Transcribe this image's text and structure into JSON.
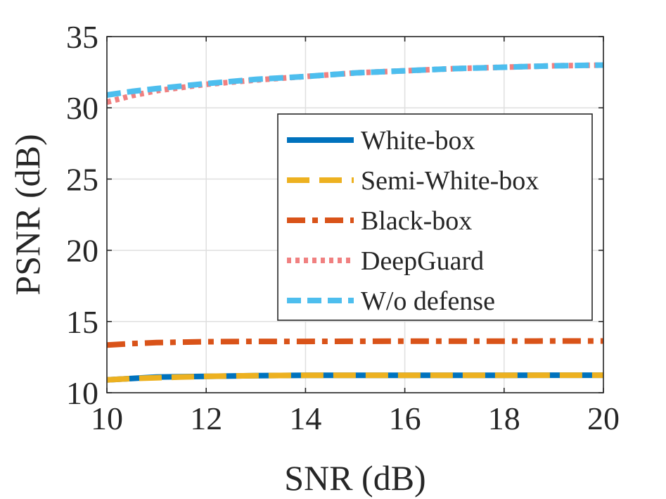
{
  "chart_data": {
    "type": "line",
    "title": "",
    "xlabel": "SNR (dB)",
    "ylabel": "PSNR (dB)",
    "xlim": [
      10,
      20
    ],
    "ylim": [
      10,
      35
    ],
    "xticks": [
      10,
      12,
      14,
      16,
      18,
      20
    ],
    "yticks": [
      10,
      15,
      20,
      25,
      30,
      35
    ],
    "xtick_labels": [
      "10",
      "12",
      "14",
      "16",
      "18",
      "20"
    ],
    "ytick_labels": [
      "10",
      "15",
      "20",
      "25",
      "30",
      "35"
    ],
    "grid": true,
    "legend_position": "center-right",
    "x": [
      10,
      10.5,
      11,
      12,
      13,
      14,
      15,
      16,
      17,
      18,
      19,
      20
    ],
    "series": [
      {
        "name": "White-box",
        "color": "#0072BD",
        "style": "solid",
        "values": [
          10.9,
          11.0,
          11.1,
          11.15,
          11.2,
          11.22,
          11.22,
          11.22,
          11.22,
          11.22,
          11.23,
          11.23
        ]
      },
      {
        "name": "Semi-White-box",
        "color": "#EDB120",
        "style": "long-dash",
        "values": [
          10.9,
          11.0,
          11.05,
          11.15,
          11.2,
          11.22,
          11.22,
          11.22,
          11.22,
          11.22,
          11.23,
          11.23
        ]
      },
      {
        "name": "Black-box",
        "color": "#D95319",
        "style": "dash-dot",
        "values": [
          13.35,
          13.45,
          13.52,
          13.58,
          13.6,
          13.6,
          13.61,
          13.62,
          13.62,
          13.62,
          13.63,
          13.63
        ]
      },
      {
        "name": "DeepGuard",
        "color": "#F08080",
        "style": "dotted",
        "values": [
          30.4,
          30.85,
          31.2,
          31.65,
          31.95,
          32.2,
          32.45,
          32.6,
          32.75,
          32.85,
          32.95,
          33.0
        ]
      },
      {
        "name": "W/o defense",
        "color": "#4DBEEE",
        "style": "dashed",
        "values": [
          30.9,
          31.15,
          31.35,
          31.7,
          32.0,
          32.2,
          32.45,
          32.6,
          32.75,
          32.85,
          32.95,
          33.0
        ]
      }
    ]
  }
}
